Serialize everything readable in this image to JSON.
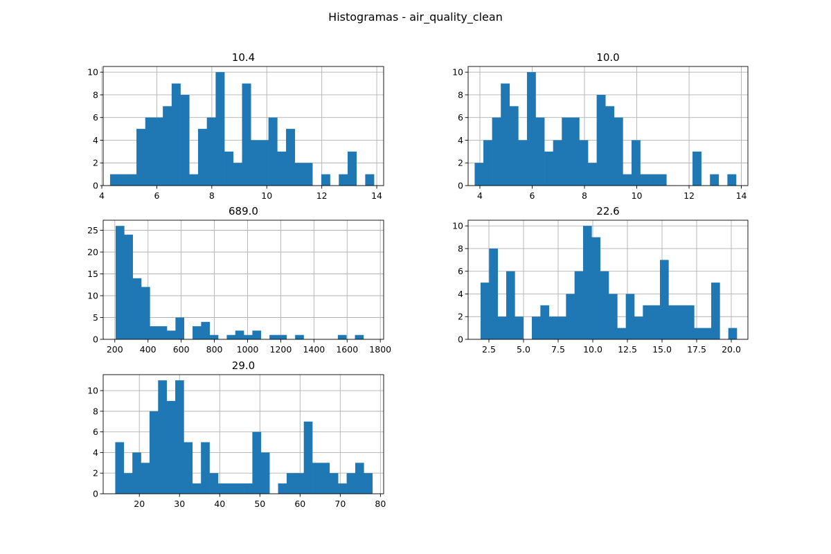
{
  "figure": {
    "suptitle": "Histogramas - air_quality_clean",
    "bar_color": "#1f77b4",
    "grid_color": "#b0b0b0"
  },
  "chart_data": [
    {
      "type": "bar",
      "title": "10.4",
      "xlabel": "",
      "ylabel": "",
      "grid": true,
      "xlim": [
        4.05,
        14.25
      ],
      "ylim": [
        0,
        10.5
      ],
      "xticks": [
        4,
        6,
        8,
        10,
        12,
        14
      ],
      "xtick_labels": [
        "4",
        "6",
        "8",
        "10",
        "12",
        "14"
      ],
      "yticks": [
        0,
        2,
        4,
        6,
        8,
        10
      ],
      "ytick_labels": [
        "0",
        "2",
        "4",
        "6",
        "8",
        "10"
      ],
      "bins": {
        "start": 4.3,
        "width": 0.32,
        "count": 30
      },
      "values": [
        1,
        1,
        1,
        5,
        6,
        6,
        7,
        9,
        8,
        1,
        5,
        6,
        10,
        3,
        2,
        9,
        4,
        4,
        6,
        3,
        5,
        2,
        2,
        0,
        1,
        0,
        1,
        3,
        0,
        1
      ]
    },
    {
      "type": "bar",
      "title": "10.0",
      "xlabel": "",
      "ylabel": "",
      "grid": true,
      "xlim": [
        3.55,
        14.25
      ],
      "ylim": [
        0,
        10.5
      ],
      "xticks": [
        4,
        6,
        8,
        10,
        12,
        14
      ],
      "xtick_labels": [
        "4",
        "6",
        "8",
        "10",
        "12",
        "14"
      ],
      "yticks": [
        0,
        2,
        4,
        6,
        8,
        10
      ],
      "ytick_labels": [
        "0",
        "2",
        "4",
        "6",
        "8",
        "10"
      ],
      "bins": {
        "start": 3.8,
        "width": 0.3333,
        "count": 30
      },
      "values": [
        2,
        4,
        6,
        9,
        7,
        4,
        10,
        6,
        3,
        4,
        6,
        6,
        4,
        2,
        8,
        7,
        6,
        1,
        4,
        1,
        1,
        1,
        0,
        0,
        0,
        3,
        0,
        1,
        0,
        1
      ]
    },
    {
      "type": "bar",
      "title": "689.0",
      "xlabel": "",
      "ylabel": "",
      "grid": true,
      "xlim": [
        130,
        1820
      ],
      "ylim": [
        0,
        27.3
      ],
      "xticks": [
        200,
        400,
        600,
        800,
        1000,
        1200,
        1400,
        1600,
        1800
      ],
      "xtick_labels": [
        "200",
        "400",
        "600",
        "800",
        "1000",
        "1200",
        "1400",
        "1600",
        "1800"
      ],
      "yticks": [
        0,
        5,
        10,
        15,
        20,
        25
      ],
      "ytick_labels": [
        "0",
        "5",
        "10",
        "15",
        "20",
        "25"
      ],
      "bins": {
        "start": 205,
        "width": 51.5,
        "count": 30
      },
      "values": [
        26,
        24,
        14,
        12,
        3,
        3,
        2,
        5,
        0,
        3,
        4,
        1,
        0,
        1,
        2,
        1,
        2,
        0,
        1,
        1,
        0,
        1,
        0,
        0,
        0,
        0,
        1,
        0,
        1,
        0
      ]
    },
    {
      "type": "bar",
      "title": "22.6",
      "xlabel": "",
      "ylabel": "",
      "grid": true,
      "xlim": [
        1.0,
        21.2
      ],
      "ylim": [
        0,
        10.5
      ],
      "xticks": [
        2.5,
        5.0,
        7.5,
        10.0,
        12.5,
        15.0,
        17.5,
        20.0
      ],
      "xtick_labels": [
        "2.5",
        "5.0",
        "7.5",
        "10.0",
        "12.5",
        "15.0",
        "17.5",
        "20.0"
      ],
      "yticks": [
        0,
        2,
        4,
        6,
        8,
        10
      ],
      "ytick_labels": [
        "0",
        "2",
        "4",
        "6",
        "8",
        "10"
      ],
      "bins": {
        "start": 1.9,
        "width": 0.6167,
        "count": 30
      },
      "values": [
        5,
        8,
        2,
        6,
        2,
        0,
        2,
        3,
        2,
        2,
        4,
        6,
        10,
        9,
        6,
        4,
        1,
        4,
        2,
        3,
        3,
        7,
        3,
        3,
        3,
        1,
        1,
        5,
        0,
        1
      ]
    },
    {
      "type": "bar",
      "title": "29.0",
      "xlabel": "",
      "ylabel": "",
      "grid": true,
      "xlim": [
        11.0,
        80.8
      ],
      "ylim": [
        0,
        11.55
      ],
      "xticks": [
        20,
        30,
        40,
        50,
        60,
        70,
        80
      ],
      "xtick_labels": [
        "20",
        "30",
        "40",
        "50",
        "60",
        "70",
        "80"
      ],
      "yticks": [
        0,
        2,
        4,
        6,
        8,
        10
      ],
      "ytick_labels": [
        "0",
        "2",
        "4",
        "6",
        "8",
        "10"
      ],
      "bins": {
        "start": 14.0,
        "width": 2.133,
        "count": 30
      },
      "values": [
        5,
        2,
        4,
        3,
        8,
        11,
        9,
        11,
        5,
        1,
        5,
        2,
        1,
        1,
        1,
        1,
        6,
        4,
        0,
        1,
        2,
        2,
        7,
        3,
        3,
        2,
        1,
        2,
        3,
        2
      ]
    }
  ]
}
